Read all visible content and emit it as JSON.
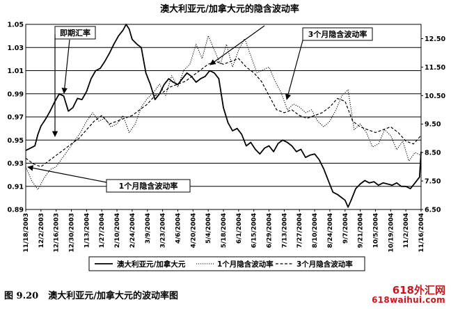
{
  "chart_data": {
    "type": "line",
    "title": "澳大利亚元/加拿大元的隐含波动率",
    "x_tick_labels": [
      "11/18/2003",
      "12/2/2003",
      "12/16/2003",
      "12/30/2003",
      "1/13/2004",
      "1/27/2004",
      "2/10/2004",
      "2/24/2004",
      "3/9/2004",
      "3/23/2004",
      "4/6/2004",
      "4/20/2004",
      "5/4/2004",
      "5/18/2004",
      "6/1/2004",
      "6/15/2004",
      "6/29/2004",
      "7/13/2004",
      "7/27/2004",
      "8/10/2004",
      "8/24/2004",
      "9/7/2004",
      "9/21/2004",
      "10/5/2004",
      "10/19/2004",
      "11/2/2004",
      "11/16/2004"
    ],
    "x_range": [
      0,
      26
    ],
    "left_axis": {
      "ylim": [
        0.89,
        1.05
      ],
      "ticks": [
        "0.89",
        "0.91",
        "0.93",
        "0.95",
        "0.97",
        "0.99",
        "1.01",
        "1.03",
        "1.05"
      ]
    },
    "right_axis": {
      "ylim": [
        6.5,
        13.0
      ],
      "ticks": [
        "6.50",
        "7.50",
        "8.50",
        "9.50",
        "10.50",
        "11.50",
        "12.50"
      ]
    },
    "grid": "horizontal",
    "legend_position": "bottom",
    "series": [
      {
        "name": "澳大利亚元/加拿大元",
        "axis": "left",
        "dash": "solid",
        "x": [
          0,
          0.3,
          0.6,
          0.8,
          1.0,
          1.3,
          1.6,
          1.9,
          2.2,
          2.5,
          2.8,
          3.1,
          3.4,
          3.7,
          4.0,
          4.3,
          4.6,
          4.9,
          5.2,
          5.5,
          5.8,
          6.1,
          6.4,
          6.6,
          6.8,
          7.0,
          7.3,
          7.6,
          7.9,
          8.2,
          8.5,
          8.8,
          9.1,
          9.4,
          9.7,
          10.0,
          10.3,
          10.6,
          10.9,
          11.2,
          11.5,
          11.8,
          12.1,
          12.4,
          12.7,
          13.0,
          13.3,
          13.6,
          13.9,
          14.2,
          14.5,
          14.8,
          15.1,
          15.4,
          15.7,
          16.0,
          16.3,
          16.6,
          16.9,
          17.2,
          17.5,
          17.8,
          18.1,
          18.4,
          18.7,
          19.0,
          19.3,
          19.6,
          19.9,
          20.2,
          20.5,
          20.8,
          21.0,
          21.2,
          21.4,
          21.7,
          22.0,
          22.3,
          22.6,
          22.9,
          23.2,
          23.5,
          23.8,
          24.1,
          24.4,
          24.7,
          25.0,
          25.3,
          25.6,
          25.9,
          26.0
        ],
        "values": [
          0.941,
          0.943,
          0.945,
          0.955,
          0.962,
          0.968,
          0.975,
          0.983,
          0.99,
          0.988,
          0.975,
          0.978,
          0.986,
          0.985,
          0.992,
          1.003,
          1.01,
          1.012,
          1.018,
          1.025,
          1.033,
          1.04,
          1.045,
          1.05,
          1.046,
          1.037,
          1.033,
          1.03,
          1.008,
          0.998,
          0.985,
          0.99,
          0.998,
          1.003,
          1.0,
          0.998,
          1.003,
          1.008,
          1.005,
          1.0,
          1.003,
          1.005,
          1.01,
          1.008,
          1.003,
          0.978,
          0.965,
          0.958,
          0.96,
          0.955,
          0.945,
          0.948,
          0.942,
          0.938,
          0.943,
          0.945,
          0.94,
          0.947,
          0.95,
          0.948,
          0.945,
          0.94,
          0.942,
          0.935,
          0.937,
          0.938,
          0.933,
          0.925,
          0.915,
          0.905,
          0.903,
          0.9,
          0.898,
          0.892,
          0.898,
          0.908,
          0.912,
          0.915,
          0.913,
          0.914,
          0.911,
          0.913,
          0.912,
          0.911,
          0.913,
          0.91,
          0.91,
          0.908,
          0.913,
          0.918,
          0.94
        ]
      },
      {
        "name": "1个月隐含波动率",
        "axis": "right",
        "dash": "dotted",
        "x": [
          0,
          0.4,
          0.8,
          1.2,
          1.6,
          2.0,
          2.4,
          2.8,
          3.2,
          3.6,
          4.0,
          4.4,
          4.8,
          5.2,
          5.6,
          6.0,
          6.4,
          6.8,
          7.2,
          7.6,
          8.0,
          8.4,
          8.8,
          9.2,
          9.6,
          10.0,
          10.4,
          10.8,
          11.2,
          11.6,
          12.0,
          12.4,
          12.8,
          13.2,
          13.6,
          14.0,
          14.4,
          14.8,
          15.2,
          15.6,
          16.0,
          16.4,
          16.8,
          17.2,
          17.6,
          18.0,
          18.4,
          18.8,
          19.2,
          19.6,
          20.0,
          20.4,
          20.8,
          21.2,
          21.6,
          22.0,
          22.4,
          22.8,
          23.2,
          23.6,
          24.0,
          24.4,
          24.8,
          25.2,
          25.6,
          26.0
        ],
        "values": [
          8.0,
          7.5,
          7.2,
          7.6,
          7.9,
          8.0,
          8.3,
          8.6,
          8.9,
          9.2,
          9.6,
          9.9,
          9.6,
          9.7,
          9.4,
          9.5,
          9.8,
          9.2,
          9.5,
          10.1,
          10.4,
          10.6,
          10.9,
          10.5,
          11.2,
          10.8,
          11.4,
          11.6,
          12.3,
          11.8,
          12.6,
          12.1,
          11.6,
          12.3,
          11.5,
          12.1,
          12.5,
          11.9,
          11.3,
          11.4,
          11.5,
          11.0,
          10.6,
          10.0,
          10.2,
          10.1,
          9.9,
          10.0,
          9.6,
          9.4,
          9.6,
          10.0,
          10.5,
          10.7,
          9.3,
          9.5,
          9.2,
          8.7,
          8.8,
          9.3,
          9.1,
          8.6,
          8.9,
          8.2,
          8.5,
          8.4
        ]
      },
      {
        "name": "3个月隐含波动率",
        "axis": "right",
        "dash": "dashed",
        "x": [
          0,
          0.5,
          1.0,
          1.5,
          2.0,
          2.5,
          3.0,
          3.5,
          4.0,
          4.5,
          5.0,
          5.5,
          6.0,
          6.5,
          7.0,
          7.5,
          8.0,
          8.5,
          9.0,
          9.5,
          10.0,
          10.5,
          11.0,
          11.5,
          12.0,
          12.5,
          13.0,
          13.5,
          14.0,
          14.5,
          15.0,
          15.5,
          16.0,
          16.5,
          17.0,
          17.5,
          18.0,
          18.5,
          19.0,
          19.5,
          20.0,
          20.5,
          21.0,
          21.5,
          22.0,
          22.5,
          23.0,
          23.5,
          24.0,
          24.5,
          25.0,
          25.5,
          26.0
        ],
        "values": [
          8.3,
          8.1,
          8.0,
          8.2,
          8.4,
          8.6,
          8.8,
          9.0,
          9.3,
          9.6,
          9.8,
          9.5,
          9.6,
          9.7,
          9.8,
          10.0,
          10.2,
          10.5,
          10.6,
          10.8,
          10.9,
          11.0,
          11.2,
          11.4,
          11.6,
          11.7,
          11.6,
          11.7,
          11.8,
          11.5,
          11.3,
          11.0,
          10.5,
          10.0,
          9.9,
          10.0,
          9.8,
          9.7,
          9.8,
          9.9,
          10.1,
          10.4,
          10.3,
          9.6,
          9.4,
          9.3,
          9.2,
          9.3,
          9.4,
          9.2,
          8.9,
          8.8,
          9.1
        ]
      }
    ],
    "annotations": [
      "即期汇率",
      "3个月隐含波动率",
      "1个月隐含波动率"
    ]
  },
  "caption": {
    "number": "图 9.20",
    "text": "澳大利亚元/加拿大元的波动率图"
  },
  "watermark": {
    "line1": "618外汇网",
    "line2": "618waihui.com"
  }
}
